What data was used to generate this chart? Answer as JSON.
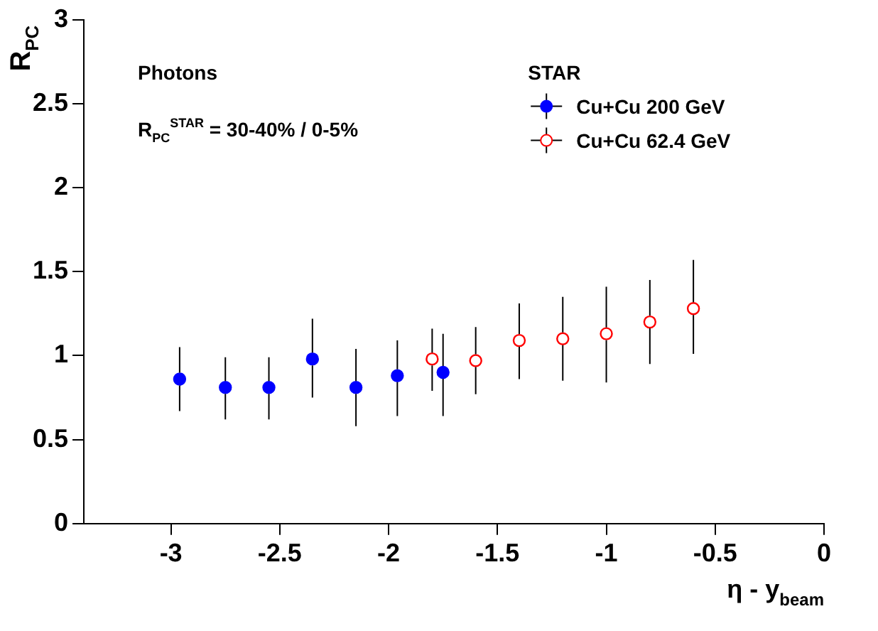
{
  "chart_data": {
    "type": "scatter",
    "xlabel": "η - y$_{beam}$",
    "ylabel": "R$_{PC}$",
    "legend_title": "STAR",
    "legend": "top right",
    "marker": "circle",
    "grid": false,
    "xlim": [
      -3.4,
      0
    ],
    "xticks": [
      -3,
      -2.5,
      -2,
      -1.5,
      -1,
      -0.5,
      0
    ],
    "ylim": [
      0,
      3
    ],
    "yticks": [
      0,
      0.5,
      1,
      1.5,
      2,
      2.5,
      3
    ],
    "annotations": [
      "Photons",
      "R$_{PC}$$^{STAR}$ = 30-40% / 0-5%"
    ],
    "series": [
      {
        "name": "Cu+Cu 200 GeV",
        "color": "#0000ff",
        "x": [
          -2.96,
          -2.75,
          -2.55,
          -2.35,
          -2.15,
          -1.96,
          -1.75
        ],
        "values": [
          0.86,
          0.81,
          0.81,
          0.98,
          0.81,
          0.88,
          0.9
        ],
        "errors": [
          [
            0.67,
            1.05
          ],
          [
            0.62,
            0.99
          ],
          [
            0.62,
            0.99
          ],
          [
            0.75,
            1.22
          ],
          [
            0.58,
            1.04
          ],
          [
            0.64,
            1.09
          ],
          [
            0.64,
            1.13
          ]
        ]
      },
      {
        "name": "Cu+Cu 62.4 GeV",
        "color": "#ff0000",
        "x": [
          -1.8,
          -1.6,
          -1.4,
          -1.2,
          -1.0,
          -0.8,
          -0.6
        ],
        "values": [
          0.98,
          0.97,
          1.09,
          1.1,
          1.13,
          1.2,
          1.28
        ],
        "errors": [
          [
            0.79,
            1.16
          ],
          [
            0.77,
            1.17
          ],
          [
            0.86,
            1.31
          ],
          [
            0.85,
            1.35
          ],
          [
            0.84,
            1.41
          ],
          [
            0.95,
            1.45
          ],
          [
            1.01,
            1.57
          ]
        ]
      }
    ]
  }
}
